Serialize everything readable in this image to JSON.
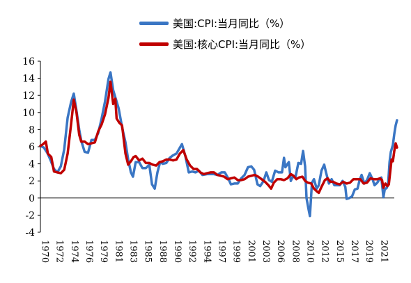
{
  "chart_data": {
    "type": "line",
    "title": "",
    "xlabel": "",
    "ylabel": "",
    "ylim": [
      -4,
      16
    ],
    "yticks": [
      "16",
      "14",
      "12",
      "10",
      "8",
      "6",
      "4",
      "2",
      "0",
      "-2",
      "-4"
    ],
    "xlim": [
      1970,
      2022
    ],
    "xticks": [
      "1970",
      "1972",
      "1974",
      "1976",
      "1979",
      "1981",
      "1983",
      "1985",
      "1988",
      "1990",
      "1992",
      "1994",
      "1997",
      "1999",
      "2001",
      "2003",
      "2006",
      "2008",
      "2010",
      "2012",
      "2015",
      "2017",
      "2019",
      "2021"
    ],
    "grid": false,
    "legend_position": "top",
    "series": [
      {
        "name": "美国:CPI:当月同比（%）",
        "color": "#3a76c4",
        "points": [
          [
            1970.0,
            6.1
          ],
          [
            1970.5,
            5.9
          ],
          [
            1971.0,
            5.3
          ],
          [
            1971.5,
            4.4
          ],
          [
            1972.0,
            3.4
          ],
          [
            1972.5,
            3.0
          ],
          [
            1973.0,
            3.7
          ],
          [
            1973.5,
            5.7
          ],
          [
            1974.0,
            9.4
          ],
          [
            1974.5,
            11.2
          ],
          [
            1974.9,
            12.2
          ],
          [
            1975.3,
            10.2
          ],
          [
            1975.7,
            8.0
          ],
          [
            1976.0,
            6.7
          ],
          [
            1976.5,
            5.4
          ],
          [
            1977.0,
            5.3
          ],
          [
            1977.5,
            6.8
          ],
          [
            1978.0,
            6.8
          ],
          [
            1978.5,
            7.6
          ],
          [
            1979.0,
            9.3
          ],
          [
            1979.5,
            11.3
          ],
          [
            1980.0,
            13.9
          ],
          [
            1980.3,
            14.7
          ],
          [
            1980.7,
            12.6
          ],
          [
            1981.0,
            11.8
          ],
          [
            1981.5,
            10.5
          ],
          [
            1982.0,
            8.3
          ],
          [
            1982.5,
            6.5
          ],
          [
            1982.9,
            4.5
          ],
          [
            1983.3,
            3.0
          ],
          [
            1983.6,
            2.5
          ],
          [
            1984.0,
            4.2
          ],
          [
            1984.5,
            4.2
          ],
          [
            1985.0,
            3.5
          ],
          [
            1985.5,
            3.5
          ],
          [
            1986.0,
            3.9
          ],
          [
            1986.4,
            1.6
          ],
          [
            1986.8,
            1.1
          ],
          [
            1987.2,
            3.0
          ],
          [
            1987.6,
            4.2
          ],
          [
            1988.0,
            4.0
          ],
          [
            1988.5,
            4.1
          ],
          [
            1989.0,
            4.7
          ],
          [
            1989.5,
            5.0
          ],
          [
            1990.0,
            5.2
          ],
          [
            1990.8,
            6.3
          ],
          [
            1991.3,
            4.9
          ],
          [
            1991.8,
            3.0
          ],
          [
            1992.3,
            3.1
          ],
          [
            1992.8,
            3.0
          ],
          [
            1993.3,
            3.2
          ],
          [
            1993.8,
            2.7
          ],
          [
            1994.5,
            2.8
          ],
          [
            1995.0,
            2.8
          ],
          [
            1995.5,
            2.8
          ],
          [
            1996.0,
            2.7
          ],
          [
            1996.6,
            3.0
          ],
          [
            1997.1,
            3.0
          ],
          [
            1997.6,
            2.3
          ],
          [
            1998.0,
            1.6
          ],
          [
            1998.5,
            1.7
          ],
          [
            1999.0,
            1.7
          ],
          [
            1999.5,
            2.3
          ],
          [
            2000.0,
            2.7
          ],
          [
            2000.5,
            3.6
          ],
          [
            2001.0,
            3.7
          ],
          [
            2001.4,
            3.3
          ],
          [
            2001.9,
            1.6
          ],
          [
            2002.3,
            1.4
          ],
          [
            2002.8,
            2.0
          ],
          [
            2003.2,
            3.0
          ],
          [
            2003.6,
            2.1
          ],
          [
            2004.0,
            1.9
          ],
          [
            2004.5,
            3.2
          ],
          [
            2005.0,
            3.0
          ],
          [
            2005.5,
            3.0
          ],
          [
            2005.8,
            4.7
          ],
          [
            2006.0,
            3.6
          ],
          [
            2006.5,
            4.2
          ],
          [
            2006.8,
            2.0
          ],
          [
            2007.0,
            2.4
          ],
          [
            2007.5,
            2.5
          ],
          [
            2007.9,
            4.1
          ],
          [
            2008.3,
            4.0
          ],
          [
            2008.6,
            5.5
          ],
          [
            2008.9,
            3.7
          ],
          [
            2009.1,
            0.0
          ],
          [
            2009.4,
            -1.3
          ],
          [
            2009.6,
            -2.1
          ],
          [
            2009.9,
            1.8
          ],
          [
            2010.2,
            2.2
          ],
          [
            2010.6,
            1.1
          ],
          [
            2010.9,
            1.5
          ],
          [
            2011.3,
            3.2
          ],
          [
            2011.7,
            3.9
          ],
          [
            2012.0,
            2.9
          ],
          [
            2012.4,
            1.7
          ],
          [
            2012.8,
            2.2
          ],
          [
            2013.2,
            1.5
          ],
          [
            2013.6,
            1.5
          ],
          [
            2014.0,
            1.5
          ],
          [
            2014.4,
            2.0
          ],
          [
            2014.8,
            1.3
          ],
          [
            2015.0,
            -0.1
          ],
          [
            2015.4,
            0.0
          ],
          [
            2015.8,
            0.2
          ],
          [
            2016.2,
            1.0
          ],
          [
            2016.6,
            1.1
          ],
          [
            2016.9,
            2.1
          ],
          [
            2017.2,
            2.7
          ],
          [
            2017.6,
            1.7
          ],
          [
            2018.0,
            2.1
          ],
          [
            2018.4,
            2.9
          ],
          [
            2018.8,
            2.2
          ],
          [
            2019.1,
            1.5
          ],
          [
            2019.5,
            1.8
          ],
          [
            2019.9,
            2.3
          ],
          [
            2020.1,
            2.4
          ],
          [
            2020.4,
            0.1
          ],
          [
            2020.6,
            1.0
          ],
          [
            2020.9,
            1.2
          ],
          [
            2021.1,
            1.7
          ],
          [
            2021.3,
            4.2
          ],
          [
            2021.5,
            5.4
          ],
          [
            2021.8,
            6.2
          ],
          [
            2022.0,
            7.5
          ],
          [
            2022.2,
            8.5
          ],
          [
            2022.4,
            9.1
          ]
        ]
      },
      {
        "name": "美国:核心CPI:当月同比（%）",
        "color": "#c00000",
        "points": [
          [
            1970.0,
            6.1
          ],
          [
            1970.4,
            6.3
          ],
          [
            1970.8,
            6.6
          ],
          [
            1971.1,
            5.2
          ],
          [
            1971.6,
            4.8
          ],
          [
            1972.0,
            3.1
          ],
          [
            1972.5,
            3.0
          ],
          [
            1973.0,
            2.9
          ],
          [
            1973.5,
            3.3
          ],
          [
            1974.0,
            5.2
          ],
          [
            1974.5,
            8.6
          ],
          [
            1974.9,
            11.5
          ],
          [
            1975.3,
            10.0
          ],
          [
            1975.7,
            7.4
          ],
          [
            1976.0,
            6.6
          ],
          [
            1976.5,
            6.6
          ],
          [
            1977.0,
            6.3
          ],
          [
            1977.5,
            6.4
          ],
          [
            1978.0,
            6.5
          ],
          [
            1978.5,
            7.8
          ],
          [
            1979.0,
            8.6
          ],
          [
            1979.5,
            9.8
          ],
          [
            1980.0,
            11.7
          ],
          [
            1980.3,
            13.6
          ],
          [
            1980.7,
            11.0
          ],
          [
            1981.0,
            11.6
          ],
          [
            1981.2,
            9.3
          ],
          [
            1981.6,
            8.8
          ],
          [
            1982.0,
            8.5
          ],
          [
            1982.5,
            5.2
          ],
          [
            1982.9,
            3.9
          ],
          [
            1983.3,
            4.3
          ],
          [
            1983.7,
            4.8
          ],
          [
            1984.0,
            4.9
          ],
          [
            1984.5,
            4.4
          ],
          [
            1985.0,
            4.6
          ],
          [
            1985.5,
            4.1
          ],
          [
            1986.0,
            4.1
          ],
          [
            1986.5,
            3.9
          ],
          [
            1987.0,
            3.8
          ],
          [
            1987.5,
            4.2
          ],
          [
            1988.0,
            4.3
          ],
          [
            1988.5,
            4.5
          ],
          [
            1989.0,
            4.5
          ],
          [
            1989.5,
            4.4
          ],
          [
            1990.0,
            4.5
          ],
          [
            1990.5,
            5.2
          ],
          [
            1991.0,
            5.6
          ],
          [
            1991.5,
            4.5
          ],
          [
            1992.0,
            3.8
          ],
          [
            1992.5,
            3.4
          ],
          [
            1993.0,
            3.4
          ],
          [
            1993.5,
            3.0
          ],
          [
            1994.0,
            2.8
          ],
          [
            1994.5,
            2.9
          ],
          [
            1995.0,
            3.0
          ],
          [
            1995.5,
            3.0
          ],
          [
            1996.0,
            2.7
          ],
          [
            1996.5,
            2.6
          ],
          [
            1997.0,
            2.5
          ],
          [
            1997.5,
            2.2
          ],
          [
            1998.0,
            2.3
          ],
          [
            1998.5,
            2.4
          ],
          [
            1999.0,
            2.1
          ],
          [
            1999.5,
            2.1
          ],
          [
            2000.0,
            2.2
          ],
          [
            2000.5,
            2.5
          ],
          [
            2001.0,
            2.6
          ],
          [
            2001.5,
            2.7
          ],
          [
            2002.0,
            2.5
          ],
          [
            2002.5,
            2.2
          ],
          [
            2003.0,
            1.9
          ],
          [
            2003.5,
            1.5
          ],
          [
            2003.9,
            1.1
          ],
          [
            2004.3,
            1.8
          ],
          [
            2004.8,
            2.2
          ],
          [
            2005.3,
            2.2
          ],
          [
            2005.8,
            2.1
          ],
          [
            2006.3,
            2.3
          ],
          [
            2006.8,
            2.8
          ],
          [
            2007.2,
            2.6
          ],
          [
            2007.6,
            2.2
          ],
          [
            2008.0,
            2.4
          ],
          [
            2008.5,
            2.5
          ],
          [
            2008.9,
            2.0
          ],
          [
            2009.3,
            1.8
          ],
          [
            2009.8,
            1.7
          ],
          [
            2010.2,
            1.1
          ],
          [
            2010.6,
            0.8
          ],
          [
            2010.9,
            0.6
          ],
          [
            2011.3,
            1.3
          ],
          [
            2011.8,
            2.1
          ],
          [
            2012.2,
            2.3
          ],
          [
            2012.6,
            1.9
          ],
          [
            2013.0,
            1.9
          ],
          [
            2013.5,
            1.7
          ],
          [
            2014.0,
            1.6
          ],
          [
            2014.5,
            1.9
          ],
          [
            2015.0,
            1.7
          ],
          [
            2015.5,
            1.8
          ],
          [
            2016.0,
            2.2
          ],
          [
            2016.5,
            2.2
          ],
          [
            2017.0,
            2.2
          ],
          [
            2017.5,
            1.7
          ],
          [
            2018.0,
            1.8
          ],
          [
            2018.5,
            2.3
          ],
          [
            2019.0,
            2.2
          ],
          [
            2019.5,
            2.2
          ],
          [
            2019.9,
            2.3
          ],
          [
            2020.2,
            2.1
          ],
          [
            2020.4,
            1.2
          ],
          [
            2020.7,
            1.7
          ],
          [
            2021.0,
            1.4
          ],
          [
            2021.2,
            1.6
          ],
          [
            2021.4,
            3.0
          ],
          [
            2021.6,
            4.5
          ],
          [
            2021.8,
            4.3
          ],
          [
            2022.0,
            5.5
          ],
          [
            2022.2,
            6.4
          ],
          [
            2022.4,
            5.9
          ]
        ]
      }
    ]
  }
}
